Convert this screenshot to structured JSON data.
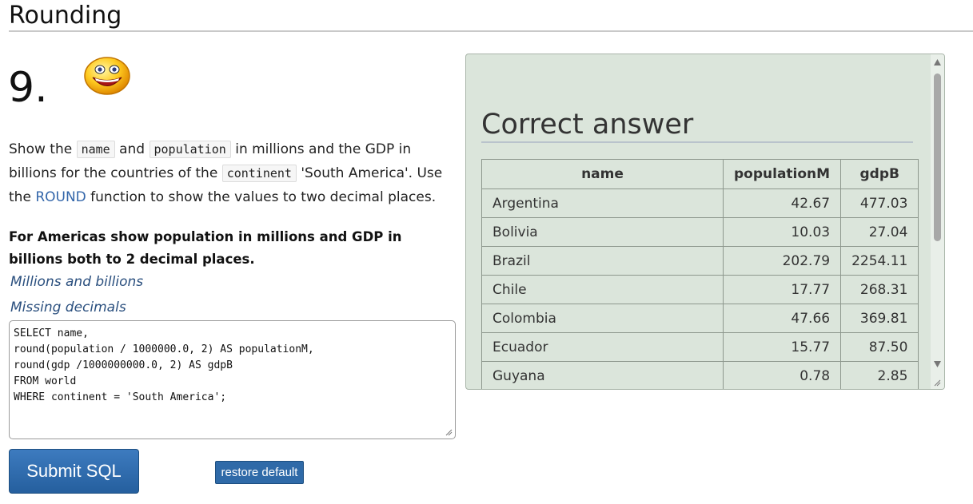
{
  "page": {
    "section_title": "Rounding",
    "question_number": "9.",
    "smiley_icon": "smiling-face-icon"
  },
  "question": {
    "text_1": "Show the ",
    "code_name": "name",
    "text_2": " and ",
    "code_population": "population",
    "text_3": " in millions and the GDP in billions for the countries of the ",
    "code_continent": "continent",
    "text_4": " 'South America'. Use the ",
    "round_link": "ROUND",
    "text_5": " function to show the values to two decimal places."
  },
  "note": {
    "bold_text": "For Americas show population in millions and GDP in billions both to 2 decimal places."
  },
  "hints": [
    {
      "label": "Millions and billions"
    },
    {
      "label": "Missing decimals"
    }
  ],
  "sql": {
    "value": "SELECT name,\nround(population / 1000000.0, 2) AS populationM,\nround(gdp /1000000000.0, 2) AS gdpB\nFROM world\nWHERE continent = 'South America';"
  },
  "buttons": {
    "submit_label": "Submit SQL",
    "restore_label": "restore default"
  },
  "answer": {
    "title": "Correct answer",
    "columns": [
      "name",
      "populationM",
      "gdpB"
    ],
    "rows": [
      [
        "Argentina",
        "42.67",
        "477.03"
      ],
      [
        "Bolivia",
        "10.03",
        "27.04"
      ],
      [
        "Brazil",
        "202.79",
        "2254.11"
      ],
      [
        "Chile",
        "17.77",
        "268.31"
      ],
      [
        "Colombia",
        "47.66",
        "369.81"
      ],
      [
        "Ecuador",
        "15.77",
        "87.50"
      ],
      [
        "Guyana",
        "0.78",
        "2.85"
      ]
    ]
  },
  "colors": {
    "panel_bg": "#dbe5db",
    "link": "#3366aa",
    "hint": "#2a4f7e",
    "button": "#2f6aa8"
  }
}
